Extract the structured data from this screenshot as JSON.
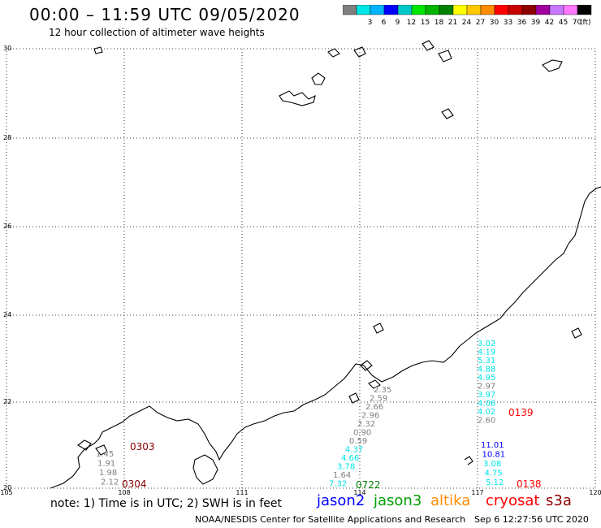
{
  "header": {
    "title": "00:00 – 11:59 UTC 09/05/2020",
    "subtitle": "12 hour collection of altimeter wave heights"
  },
  "colorbar": {
    "unit": "(ft)",
    "swatches": [
      {
        "label": "",
        "color": "#808080"
      },
      {
        "label": "3",
        "color": "#00e5e5"
      },
      {
        "label": "6",
        "color": "#00b4ff"
      },
      {
        "label": "9",
        "color": "#0000ff"
      },
      {
        "label": "12",
        "color": "#00c8c8"
      },
      {
        "label": "15",
        "color": "#00e600"
      },
      {
        "label": "18",
        "color": "#00b400"
      },
      {
        "label": "21",
        "color": "#008200"
      },
      {
        "label": "24",
        "color": "#ffff00"
      },
      {
        "label": "27",
        "color": "#ffc800"
      },
      {
        "label": "30",
        "color": "#ff8c00"
      },
      {
        "label": "33",
        "color": "#ff0000"
      },
      {
        "label": "36",
        "color": "#c80000"
      },
      {
        "label": "39",
        "color": "#8c0000"
      },
      {
        "label": "42",
        "color": "#a000a0"
      },
      {
        "label": "45",
        "color": "#c878ff"
      },
      {
        "label": "70",
        "color": "#ff78ff"
      },
      {
        "label": "",
        "color": "#000000"
      }
    ]
  },
  "map": {
    "lat_labels": [
      "30",
      "28",
      "26",
      "24",
      "22",
      "20"
    ],
    "lon_labels": [
      "105",
      "108",
      "111",
      "114",
      "117",
      "120"
    ]
  },
  "tracks": [
    {
      "time": "0303",
      "time_color": "#8c0000",
      "points": [
        {
          "v": "1.45",
          "c": "#808080"
        },
        {
          "v": "1.91",
          "c": "#808080"
        },
        {
          "v": "1.98",
          "c": "#808080"
        },
        {
          "v": "2.12",
          "c": "#808080"
        }
      ]
    },
    {
      "time": "0304",
      "time_color": "#8c0000",
      "points": []
    },
    {
      "time": "0722",
      "time_color": "#008200",
      "points": [
        {
          "v": "2.35",
          "c": "#808080"
        },
        {
          "v": "2.59",
          "c": "#808080"
        },
        {
          "v": "2.66",
          "c": "#808080"
        },
        {
          "v": "2.96",
          "c": "#808080"
        },
        {
          "v": "2.32",
          "c": "#808080"
        },
        {
          "v": "0.90",
          "c": "#808080"
        },
        {
          "v": "0.59",
          "c": "#808080"
        },
        {
          "v": "4.37",
          "c": "#00e5e5"
        },
        {
          "v": "4.66",
          "c": "#00e5e5"
        },
        {
          "v": "3.78",
          "c": "#00e5e5"
        },
        {
          "v": "1.64",
          "c": "#808080"
        },
        {
          "v": "7.32",
          "c": "#00e5e5"
        }
      ]
    },
    {
      "time": "0139",
      "time_color": "#ff0000",
      "points": [
        {
          "v": "3.02",
          "c": "#00e5e5"
        },
        {
          "v": "4.19",
          "c": "#00e5e5"
        },
        {
          "v": "5.31",
          "c": "#00e5e5"
        },
        {
          "v": "4.88",
          "c": "#00e5e5"
        },
        {
          "v": "4.95",
          "c": "#00e5e5"
        },
        {
          "v": "2.97",
          "c": "#808080"
        },
        {
          "v": "3.97",
          "c": "#00e5e5"
        },
        {
          "v": "4.06",
          "c": "#00e5e5"
        },
        {
          "v": "4.02",
          "c": "#00e5e5"
        },
        {
          "v": "2.60",
          "c": "#808080"
        }
      ]
    },
    {
      "time": "0138",
      "time_color": "#ff0000",
      "points": [
        {
          "v": "11.01",
          "c": "#0000ff"
        },
        {
          "v": "10.81",
          "c": "#0000ff"
        },
        {
          "v": "3.08",
          "c": "#00e5e5"
        },
        {
          "v": "4.75",
          "c": "#00e5e5"
        },
        {
          "v": "5.12",
          "c": "#00e5e5"
        }
      ]
    }
  ],
  "legend": {
    "note": "note: 1) Time is in UTC; 2) SWH is in feet",
    "satellites": [
      {
        "name": "jason2",
        "color": "#0000ff"
      },
      {
        "name": "jason3",
        "color": "#00a000"
      },
      {
        "name": "altika",
        "color": "#ff8c00"
      },
      {
        "name": "cryosat",
        "color": "#ff0000"
      },
      {
        "name": "s3a",
        "color": "#8c0000"
      }
    ]
  },
  "footer": {
    "credit": "NOAA/NESDIS Center for Satellite Applications and Research",
    "generated": "Sep  6 12:27:56 UTC 2020"
  }
}
